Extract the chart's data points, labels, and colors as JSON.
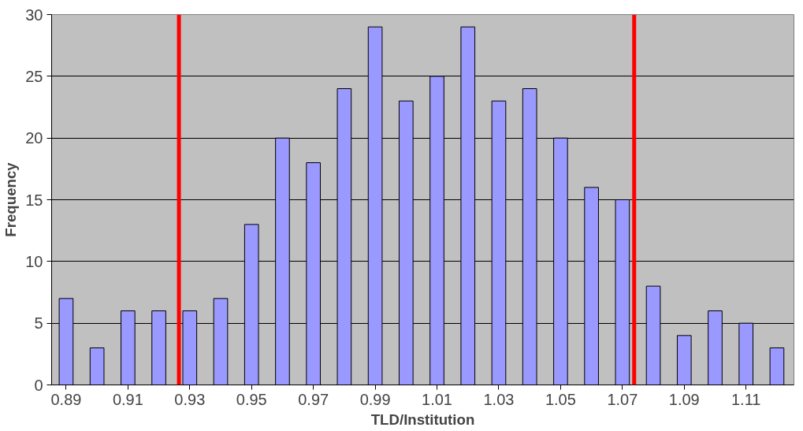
{
  "chart_data": {
    "type": "bar",
    "xlabel": "TLD/Institution",
    "ylabel": "Frequency",
    "x": [
      0.89,
      0.9,
      0.91,
      0.92,
      0.93,
      0.94,
      0.95,
      0.96,
      0.97,
      0.98,
      0.99,
      1.0,
      1.01,
      1.02,
      1.03,
      1.04,
      1.05,
      1.06,
      1.07,
      1.08,
      1.09,
      1.1,
      1.11,
      1.12
    ],
    "values": [
      7,
      3,
      6,
      6,
      6,
      7,
      13,
      20,
      18,
      24,
      29,
      23,
      25,
      29,
      23,
      24,
      20,
      16,
      15,
      8,
      4,
      6,
      5,
      3
    ],
    "color": "#9999ff",
    "xlim": [
      0.8853,
      1.1255
    ],
    "xticks": [
      {
        "value": 0.89,
        "label": "0.89"
      },
      {
        "value": 0.91,
        "label": "0.91"
      },
      {
        "value": 0.93,
        "label": "0.93"
      },
      {
        "value": 0.95,
        "label": "0.95"
      },
      {
        "value": 0.97,
        "label": "0.97"
      },
      {
        "value": 0.99,
        "label": "0.99"
      },
      {
        "value": 1.01,
        "label": "1.01"
      },
      {
        "value": 1.03,
        "label": "1.03"
      },
      {
        "value": 1.05,
        "label": "1.05"
      },
      {
        "value": 1.07,
        "label": "1.07"
      },
      {
        "value": 1.09,
        "label": "1.09"
      },
      {
        "value": 1.11,
        "label": "1.11"
      }
    ],
    "ylim": [
      0,
      30
    ],
    "yticks": [
      0,
      5,
      10,
      15,
      20,
      25,
      30
    ],
    "grid": "y",
    "ref_lines": [
      {
        "axis": "x",
        "value": 0.9265,
        "color": "#ff0000"
      },
      {
        "axis": "x",
        "value": 1.0738,
        "color": "#ff0000"
      }
    ]
  }
}
